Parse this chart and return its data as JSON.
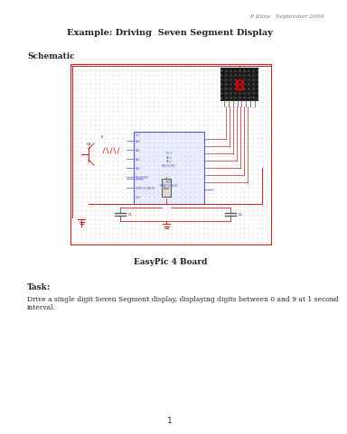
{
  "bg_color": "#ffffff",
  "header_text": "P. Kline   September 2009",
  "title": "Example: Driving  Seven Segment Display",
  "schematic_label": "Schematic",
  "caption": "EasyPic 4 Board",
  "task_label": "Task:",
  "task_body": "Drive a single digit Seven Segment display, displaying digits between 0 and 9 at 1 second\ninterval.",
  "page_number": "1",
  "dot_color": "#ccbbbb",
  "schematic_border_color": "#cc2222",
  "chip_fill": "#e8eeff",
  "chip_border": "#5555cc",
  "display_bg": "#111111",
  "display_digit_color": "#cc0000",
  "wire_color": "#cc2222",
  "transistor_color": "#cc3333",
  "gnd_color": "#cc2222",
  "header_color": "#777777",
  "text_color": "#222222"
}
